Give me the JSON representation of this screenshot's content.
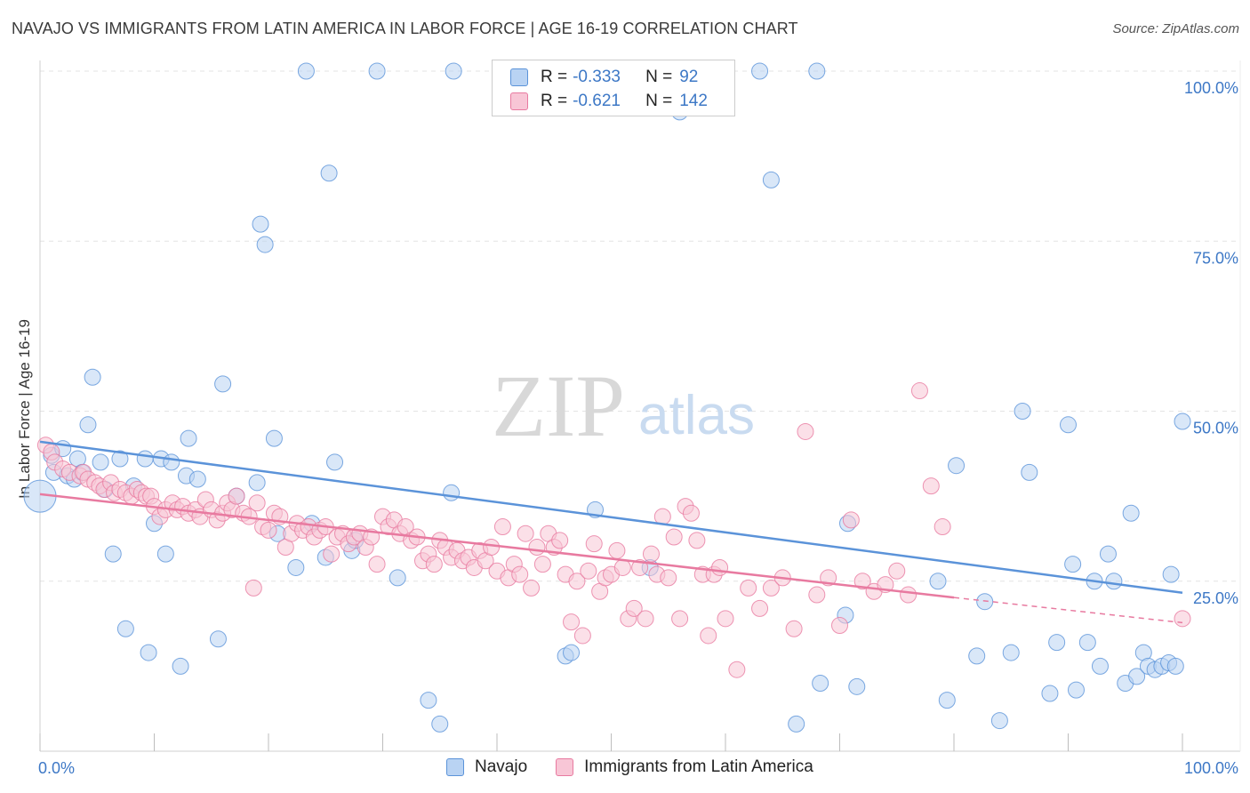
{
  "title": "NAVAJO VS IMMIGRANTS FROM LATIN AMERICA IN LABOR FORCE | AGE 16-19 CORRELATION CHART",
  "source": "Source: ZipAtlas.com",
  "watermark": {
    "zip": "ZIP",
    "atlas": "atlas"
  },
  "legend": {
    "rows": [
      {
        "r_label": "R =",
        "r_value": "-0.333",
        "n_label": "N =",
        "n_value": "92",
        "color": "#5b93d9",
        "fill": "#b9d3f3"
      },
      {
        "r_label": "R =",
        "r_value": "-0.621",
        "n_label": "N =",
        "n_value": "142",
        "color": "#e87aa0",
        "fill": "#f8c6d6"
      }
    ]
  },
  "bottom_legend": {
    "series1": "Navajo",
    "series2": "Immigrants from Latin America"
  },
  "chart_data": {
    "type": "scatter",
    "title": "NAVAJO VS IMMIGRANTS FROM LATIN AMERICA IN LABOR FORCE | AGE 16-19 CORRELATION CHART",
    "xlabel": "",
    "ylabel": "In Labor Force | Age 16-19",
    "xlim": [
      0,
      100
    ],
    "ylim": [
      0,
      100
    ],
    "x_tick_labels": [
      "0.0%",
      "100.0%"
    ],
    "y_tick_labels": [
      {
        "value": 25,
        "label": "25.0%"
      },
      {
        "value": 50,
        "label": "50.0%"
      },
      {
        "value": 75,
        "label": "75.0%"
      },
      {
        "value": 100,
        "label": "100.0%"
      }
    ],
    "grid": true,
    "legend_position": "top-center",
    "series": [
      {
        "name": "Navajo",
        "color": "#5b93d9",
        "fill": "#b9d3f3",
        "trend": {
          "x0": 0,
          "y0": 45.5,
          "x1": 100,
          "y1": 23.3
        },
        "points": [
          [
            0.0,
            37.5
          ],
          [
            1.0,
            43.5
          ],
          [
            1.2,
            41.0
          ],
          [
            2.0,
            44.5
          ],
          [
            2.4,
            40.5
          ],
          [
            3.0,
            40.0
          ],
          [
            3.3,
            43.0
          ],
          [
            3.7,
            41.0
          ],
          [
            4.2,
            48.0
          ],
          [
            4.6,
            55.0
          ],
          [
            5.3,
            42.5
          ],
          [
            5.7,
            38.5
          ],
          [
            6.4,
            29.0
          ],
          [
            7.0,
            43.0
          ],
          [
            7.5,
            18.0
          ],
          [
            8.2,
            39.0
          ],
          [
            9.2,
            43.0
          ],
          [
            9.5,
            14.5
          ],
          [
            10.0,
            33.5
          ],
          [
            10.6,
            43.0
          ],
          [
            11.0,
            29.0
          ],
          [
            11.5,
            42.5
          ],
          [
            12.3,
            12.5
          ],
          [
            12.8,
            40.5
          ],
          [
            13.0,
            46.0
          ],
          [
            13.8,
            40.0
          ],
          [
            15.6,
            16.5
          ],
          [
            16.0,
            54.0
          ],
          [
            17.2,
            37.5
          ],
          [
            19.0,
            39.5
          ],
          [
            19.3,
            77.5
          ],
          [
            19.7,
            74.5
          ],
          [
            20.5,
            46.0
          ],
          [
            20.8,
            32.0
          ],
          [
            22.4,
            27.0
          ],
          [
            23.3,
            100.0
          ],
          [
            23.8,
            33.5
          ],
          [
            25.0,
            28.5
          ],
          [
            25.3,
            85.0
          ],
          [
            25.8,
            42.5
          ],
          [
            27.3,
            29.5
          ],
          [
            27.6,
            31.0
          ],
          [
            29.5,
            100.0
          ],
          [
            31.3,
            25.5
          ],
          [
            34.0,
            7.5
          ],
          [
            35.0,
            4.0
          ],
          [
            36.2,
            100.0
          ],
          [
            36.0,
            38.0
          ],
          [
            46.0,
            14.0
          ],
          [
            46.5,
            14.5
          ],
          [
            48.6,
            35.5
          ],
          [
            49.5,
            100.0
          ],
          [
            53.4,
            27.0
          ],
          [
            56.0,
            94.0
          ],
          [
            63.0,
            100.0
          ],
          [
            64.0,
            84.0
          ],
          [
            66.2,
            4.0
          ],
          [
            68.0,
            100.0
          ],
          [
            68.3,
            10.0
          ],
          [
            70.5,
            20.0
          ],
          [
            70.7,
            33.5
          ],
          [
            71.5,
            9.5
          ],
          [
            78.6,
            25.0
          ],
          [
            79.4,
            7.5
          ],
          [
            80.2,
            42.0
          ],
          [
            82.0,
            14.0
          ],
          [
            82.7,
            22.0
          ],
          [
            84.0,
            4.5
          ],
          [
            85.0,
            14.5
          ],
          [
            86.0,
            50.0
          ],
          [
            86.6,
            41.0
          ],
          [
            88.4,
            8.5
          ],
          [
            89.0,
            16.0
          ],
          [
            90.0,
            48.0
          ],
          [
            90.4,
            27.5
          ],
          [
            90.7,
            9.0
          ],
          [
            91.7,
            16.0
          ],
          [
            92.3,
            25.0
          ],
          [
            92.8,
            12.5
          ],
          [
            93.5,
            29.0
          ],
          [
            94.0,
            25.0
          ],
          [
            95.0,
            10.0
          ],
          [
            95.5,
            35.0
          ],
          [
            96.0,
            11.0
          ],
          [
            96.6,
            14.5
          ],
          [
            97.0,
            12.5
          ],
          [
            97.6,
            12.0
          ],
          [
            98.2,
            12.5
          ],
          [
            98.8,
            13.0
          ],
          [
            99.0,
            26.0
          ],
          [
            99.4,
            12.5
          ],
          [
            100.0,
            48.5
          ]
        ]
      },
      {
        "name": "Immigrants from Latin America",
        "color": "#e87aa0",
        "fill": "#f8c6d6",
        "trend": {
          "x0": 0,
          "y0": 37.8,
          "x1": 80,
          "y1": 22.6,
          "dash_to_x": 100,
          "dash_to_y": 18.9
        },
        "points": [
          [
            0.5,
            45.0
          ],
          [
            1.0,
            44.0
          ],
          [
            1.3,
            42.5
          ],
          [
            2.0,
            41.5
          ],
          [
            2.6,
            41.0
          ],
          [
            3.5,
            40.5
          ],
          [
            3.8,
            41.0
          ],
          [
            4.2,
            40.0
          ],
          [
            4.8,
            39.5
          ],
          [
            5.2,
            39.0
          ],
          [
            5.6,
            38.5
          ],
          [
            6.2,
            39.5
          ],
          [
            6.5,
            38.0
          ],
          [
            7.0,
            38.5
          ],
          [
            7.5,
            38.0
          ],
          [
            8.0,
            37.5
          ],
          [
            8.5,
            38.5
          ],
          [
            8.9,
            38.0
          ],
          [
            9.3,
            37.5
          ],
          [
            9.7,
            37.5
          ],
          [
            10.0,
            36.0
          ],
          [
            10.5,
            34.5
          ],
          [
            11.0,
            35.5
          ],
          [
            11.6,
            36.5
          ],
          [
            12.0,
            35.5
          ],
          [
            12.5,
            36.0
          ],
          [
            13.0,
            35.0
          ],
          [
            13.6,
            35.5
          ],
          [
            14.0,
            34.5
          ],
          [
            14.5,
            37.0
          ],
          [
            15.0,
            35.5
          ],
          [
            15.5,
            34.0
          ],
          [
            16.0,
            35.0
          ],
          [
            16.4,
            36.5
          ],
          [
            16.8,
            35.5
          ],
          [
            17.2,
            37.5
          ],
          [
            17.8,
            35.0
          ],
          [
            18.3,
            34.5
          ],
          [
            18.7,
            24.0
          ],
          [
            19.0,
            36.5
          ],
          [
            19.5,
            33.0
          ],
          [
            20.0,
            32.5
          ],
          [
            20.5,
            35.0
          ],
          [
            21.0,
            34.5
          ],
          [
            21.5,
            30.0
          ],
          [
            22.0,
            32.0
          ],
          [
            22.5,
            33.5
          ],
          [
            23.0,
            32.5
          ],
          [
            23.5,
            33.0
          ],
          [
            24.0,
            31.5
          ],
          [
            24.5,
            32.5
          ],
          [
            25.0,
            33.0
          ],
          [
            25.5,
            29.0
          ],
          [
            26.0,
            31.5
          ],
          [
            26.5,
            32.0
          ],
          [
            27.0,
            30.5
          ],
          [
            27.5,
            31.5
          ],
          [
            28.0,
            32.0
          ],
          [
            28.5,
            30.0
          ],
          [
            29.0,
            31.5
          ],
          [
            29.5,
            27.5
          ],
          [
            30.0,
            34.5
          ],
          [
            30.5,
            33.0
          ],
          [
            31.0,
            34.0
          ],
          [
            31.5,
            32.0
          ],
          [
            32.0,
            33.0
          ],
          [
            32.5,
            31.0
          ],
          [
            33.0,
            31.5
          ],
          [
            33.5,
            28.0
          ],
          [
            34.0,
            29.0
          ],
          [
            34.5,
            27.5
          ],
          [
            35.0,
            31.0
          ],
          [
            35.5,
            30.0
          ],
          [
            36.0,
            28.5
          ],
          [
            36.5,
            29.5
          ],
          [
            37.0,
            28.0
          ],
          [
            37.5,
            28.5
          ],
          [
            38.0,
            27.0
          ],
          [
            38.5,
            29.5
          ],
          [
            39.0,
            28.0
          ],
          [
            39.5,
            30.0
          ],
          [
            40.0,
            26.5
          ],
          [
            40.5,
            33.0
          ],
          [
            41.0,
            25.5
          ],
          [
            41.5,
            27.5
          ],
          [
            42.0,
            26.0
          ],
          [
            42.5,
            32.0
          ],
          [
            43.0,
            24.0
          ],
          [
            43.5,
            30.0
          ],
          [
            44.0,
            27.5
          ],
          [
            44.5,
            32.0
          ],
          [
            45.0,
            30.0
          ],
          [
            45.5,
            31.0
          ],
          [
            46.0,
            26.0
          ],
          [
            46.5,
            19.0
          ],
          [
            47.0,
            25.0
          ],
          [
            47.5,
            17.0
          ],
          [
            48.0,
            26.5
          ],
          [
            48.5,
            30.5
          ],
          [
            49.0,
            23.5
          ],
          [
            49.5,
            25.5
          ],
          [
            50.0,
            26.0
          ],
          [
            50.5,
            29.5
          ],
          [
            51.0,
            27.0
          ],
          [
            51.5,
            19.5
          ],
          [
            52.0,
            21.0
          ],
          [
            52.5,
            27.0
          ],
          [
            53.0,
            19.5
          ],
          [
            53.5,
            29.0
          ],
          [
            54.0,
            26.0
          ],
          [
            54.5,
            34.5
          ],
          [
            55.0,
            25.5
          ],
          [
            55.5,
            31.5
          ],
          [
            56.0,
            19.5
          ],
          [
            56.5,
            36.0
          ],
          [
            57.0,
            35.0
          ],
          [
            57.5,
            31.0
          ],
          [
            58.0,
            26.0
          ],
          [
            58.5,
            17.0
          ],
          [
            59.0,
            26.0
          ],
          [
            59.5,
            27.0
          ],
          [
            60.0,
            19.5
          ],
          [
            61.0,
            12.0
          ],
          [
            62.0,
            24.0
          ],
          [
            63.0,
            21.0
          ],
          [
            64.0,
            24.0
          ],
          [
            65.0,
            25.5
          ],
          [
            66.0,
            18.0
          ],
          [
            67.0,
            47.0
          ],
          [
            68.0,
            23.0
          ],
          [
            69.0,
            25.5
          ],
          [
            70.0,
            18.5
          ],
          [
            71.0,
            34.0
          ],
          [
            72.0,
            25.0
          ],
          [
            73.0,
            23.5
          ],
          [
            74.0,
            24.5
          ],
          [
            75.0,
            26.5
          ],
          [
            76.0,
            23.0
          ],
          [
            77.0,
            53.0
          ],
          [
            78.0,
            39.0
          ],
          [
            79.0,
            33.0
          ],
          [
            100.0,
            19.5
          ]
        ]
      }
    ]
  }
}
